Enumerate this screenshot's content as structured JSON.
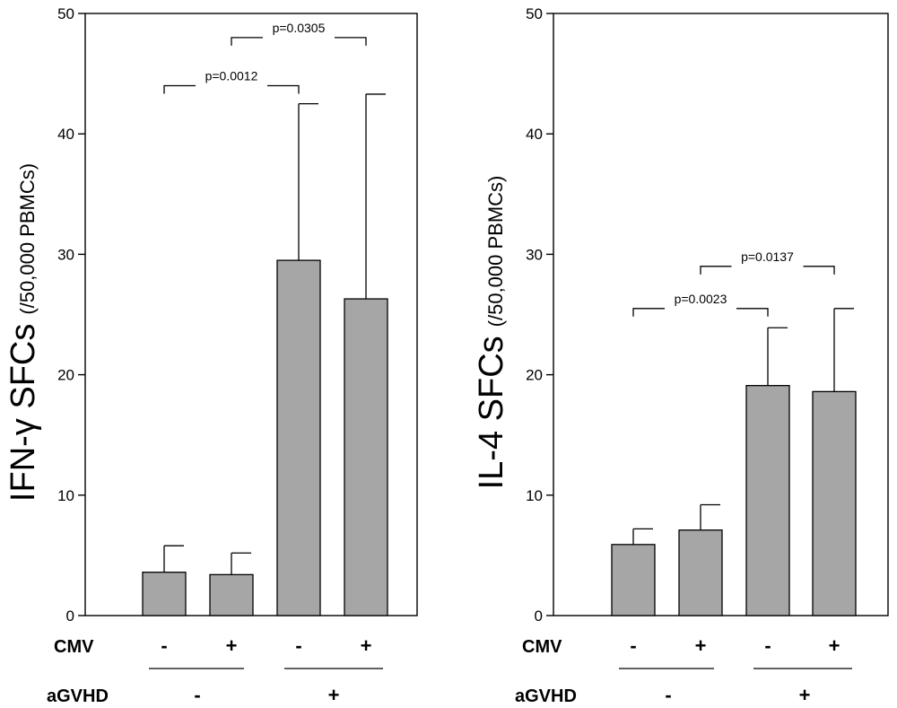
{
  "colors": {
    "bar_fill": "#a6a6a6",
    "stroke": "#000000",
    "background": "#ffffff"
  },
  "chart_data": [
    {
      "type": "bar",
      "title": "",
      "ylabel_main": "IFN-γ SFCs",
      "ylabel_unit": "(/50,000 PBMCs)",
      "ylim": [
        0,
        50
      ],
      "yticks": [
        "0",
        "10",
        "20",
        "30",
        "40",
        "50"
      ],
      "categories": [
        "aGVHD - / CMV -",
        "aGVHD - / CMV +",
        "aGVHD + / CMV -",
        "aGVHD + / CMV +"
      ],
      "values": [
        3.6,
        3.4,
        29.5,
        26.3
      ],
      "errors": [
        2.2,
        1.8,
        13.0,
        17.0
      ],
      "row_labels": {
        "row1": "CMV",
        "row2": "aGVHD"
      },
      "cmv_signs": [
        "-",
        "+",
        "-",
        "+"
      ],
      "agvhd_signs": [
        "-",
        "+"
      ],
      "significance": [
        {
          "from": 0,
          "to": 2,
          "label": "p=0.0012",
          "y": 44
        },
        {
          "from": 1,
          "to": 3,
          "label": "p=0.0305",
          "y": 48
        }
      ]
    },
    {
      "type": "bar",
      "title": "",
      "ylabel_main": "IL-4 SFCs",
      "ylabel_unit": "(/50,000 PBMCs)",
      "ylim": [
        0,
        50
      ],
      "yticks": [
        "0",
        "10",
        "20",
        "30",
        "40",
        "50"
      ],
      "categories": [
        "aGVHD - / CMV -",
        "aGVHD - / CMV +",
        "aGVHD + / CMV -",
        "aGVHD + / CMV +"
      ],
      "values": [
        5.9,
        7.1,
        19.1,
        18.6
      ],
      "errors": [
        1.3,
        2.1,
        4.8,
        6.9
      ],
      "row_labels": {
        "row1": "CMV",
        "row2": "aGVHD"
      },
      "cmv_signs": [
        "-",
        "+",
        "-",
        "+"
      ],
      "agvhd_signs": [
        "-",
        "+"
      ],
      "significance": [
        {
          "from": 0,
          "to": 2,
          "label": "p=0.0023",
          "y": 25.5
        },
        {
          "from": 1,
          "to": 3,
          "label": "p=0.0137",
          "y": 29
        }
      ]
    }
  ]
}
